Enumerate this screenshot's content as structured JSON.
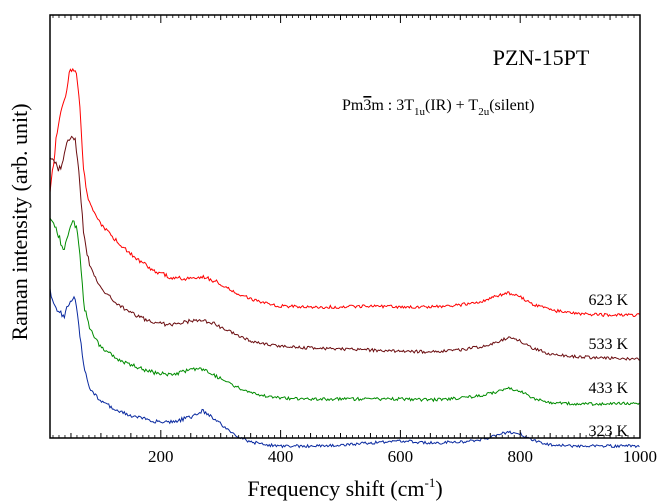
{
  "chart_data": {
    "type": "line",
    "title": "PZN-15PT",
    "annotation": {
      "prefix": "Pm",
      "over_digit": "3",
      "suffix": "m : 3T",
      "sub1": "1u",
      "mid": "(IR) + T",
      "sub2": "2u",
      "end": "(silent)"
    },
    "xlabel": "Frequency shift (cm",
    "xlabel_sup": "-1",
    "xlabel_close": ")",
    "ylabel": "Raman intensity (arb. unit)",
    "xlim": [
      15,
      1000
    ],
    "xticks": [
      200,
      400,
      600,
      800,
      1000
    ],
    "y_ticks_labeled": false,
    "grid": false,
    "legend": "none",
    "series": [
      {
        "name": "623 K",
        "color": "#ff0000",
        "points": [
          [
            15,
            180
          ],
          [
            25,
            125
          ],
          [
            33,
            95
          ],
          [
            40,
            85
          ],
          [
            48,
            57
          ],
          [
            55,
            55
          ],
          [
            60,
            62
          ],
          [
            65,
            95
          ],
          [
            72,
            160
          ],
          [
            80,
            185
          ],
          [
            100,
            210
          ],
          [
            130,
            228
          ],
          [
            160,
            244
          ],
          [
            190,
            256
          ],
          [
            220,
            263
          ],
          [
            250,
            264
          ],
          [
            270,
            262
          ],
          [
            290,
            266
          ],
          [
            320,
            276
          ],
          [
            350,
            284
          ],
          [
            380,
            289
          ],
          [
            400,
            291
          ],
          [
            450,
            292
          ],
          [
            500,
            292
          ],
          [
            550,
            291
          ],
          [
            600,
            292
          ],
          [
            650,
            292
          ],
          [
            700,
            290
          ],
          [
            740,
            286
          ],
          [
            765,
            280
          ],
          [
            780,
            278
          ],
          [
            800,
            282
          ],
          [
            820,
            289
          ],
          [
            850,
            295
          ],
          [
            900,
            299
          ],
          [
            950,
            300
          ],
          [
            1000,
            300
          ]
        ]
      },
      {
        "name": "533 K",
        "color": "#6b0d10",
        "points": [
          [
            15,
            145
          ],
          [
            20,
            140
          ],
          [
            28,
            155
          ],
          [
            35,
            152
          ],
          [
            45,
            125
          ],
          [
            52,
            118
          ],
          [
            58,
            128
          ],
          [
            65,
            170
          ],
          [
            72,
            222
          ],
          [
            80,
            248
          ],
          [
            100,
            274
          ],
          [
            130,
            290
          ],
          [
            160,
            301
          ],
          [
            190,
            308
          ],
          [
            220,
            310
          ],
          [
            250,
            306
          ],
          [
            270,
            305
          ],
          [
            290,
            309
          ],
          [
            320,
            318
          ],
          [
            350,
            326
          ],
          [
            380,
            330
          ],
          [
            400,
            331
          ],
          [
            450,
            333
          ],
          [
            500,
            334
          ],
          [
            550,
            335
          ],
          [
            600,
            336
          ],
          [
            650,
            337
          ],
          [
            700,
            335
          ],
          [
            740,
            331
          ],
          [
            765,
            326
          ],
          [
            780,
            323
          ],
          [
            800,
            326
          ],
          [
            820,
            333
          ],
          [
            850,
            339
          ],
          [
            900,
            342
          ],
          [
            950,
            343
          ],
          [
            1000,
            344
          ]
        ]
      },
      {
        "name": "433 K",
        "color": "#008c00",
        "points": [
          [
            15,
            205
          ],
          [
            25,
            212
          ],
          [
            35,
            232
          ],
          [
            40,
            232
          ],
          [
            48,
            210
          ],
          [
            55,
            206
          ],
          [
            60,
            215
          ],
          [
            65,
            240
          ],
          [
            72,
            290
          ],
          [
            80,
            312
          ],
          [
            100,
            333
          ],
          [
            130,
            345
          ],
          [
            160,
            352
          ],
          [
            190,
            358
          ],
          [
            220,
            360
          ],
          [
            250,
            355
          ],
          [
            270,
            354
          ],
          [
            290,
            360
          ],
          [
            320,
            370
          ],
          [
            350,
            378
          ],
          [
            380,
            382
          ],
          [
            400,
            383
          ],
          [
            450,
            384
          ],
          [
            500,
            384
          ],
          [
            550,
            384
          ],
          [
            600,
            384
          ],
          [
            650,
            385
          ],
          [
            700,
            383
          ],
          [
            740,
            380
          ],
          [
            765,
            376
          ],
          [
            780,
            373
          ],
          [
            800,
            376
          ],
          [
            820,
            383
          ],
          [
            850,
            388
          ],
          [
            900,
            389
          ],
          [
            950,
            389
          ],
          [
            1000,
            388
          ]
        ]
      },
      {
        "name": "323 K",
        "color": "#0a2aa0",
        "points": [
          [
            15,
            275
          ],
          [
            25,
            295
          ],
          [
            35,
            300
          ],
          [
            40,
            300
          ],
          [
            48,
            285
          ],
          [
            55,
            282
          ],
          [
            60,
            292
          ],
          [
            65,
            320
          ],
          [
            72,
            352
          ],
          [
            80,
            372
          ],
          [
            100,
            387
          ],
          [
            130,
            396
          ],
          [
            160,
            402
          ],
          [
            190,
            406
          ],
          [
            220,
            407
          ],
          [
            250,
            402
          ],
          [
            270,
            396
          ],
          [
            290,
            404
          ],
          [
            320,
            419
          ],
          [
            350,
            427
          ],
          [
            380,
            430
          ],
          [
            400,
            431
          ],
          [
            450,
            431
          ],
          [
            500,
            430
          ],
          [
            550,
            428
          ],
          [
            600,
            426
          ],
          [
            650,
            428
          ],
          [
            700,
            427
          ],
          [
            740,
            424
          ],
          [
            765,
            419
          ],
          [
            780,
            417
          ],
          [
            800,
            419
          ],
          [
            820,
            425
          ],
          [
            850,
            430
          ],
          [
            900,
            431
          ],
          [
            950,
            431
          ],
          [
            1000,
            431
          ]
        ]
      }
    ]
  }
}
